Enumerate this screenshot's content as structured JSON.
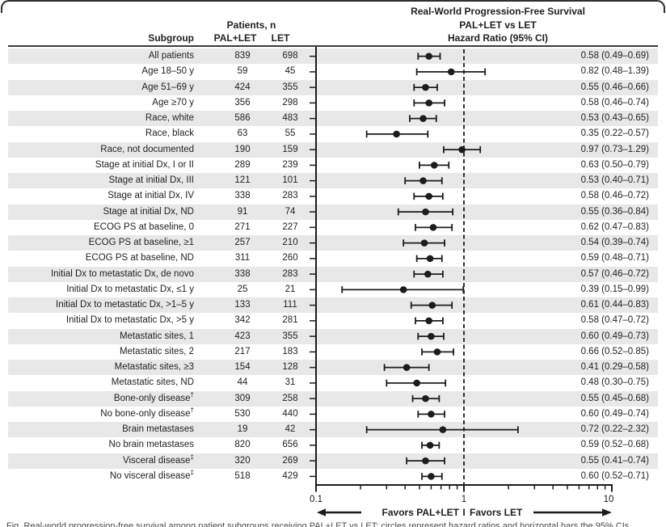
{
  "figure": {
    "title_lines": [
      "Real-World Progression-Free Survival",
      "PAL+LET vs LET",
      "Hazard Ratio (95% CI)"
    ],
    "col_headers": {
      "patients_n": "Patients, n",
      "subgroup": "Subgroup",
      "arm1": "PAL+LET",
      "arm2": "LET"
    },
    "favors": {
      "left": "Favors PAL+LET",
      "divider": "I",
      "right": "Favors LET"
    },
    "caption_partial": "Fig. Real-world progression-free survival among patient subgroups receiving PAL+LET vs LET; circles represent hazard ratios and horizontal bars the 95% CIs",
    "colors": {
      "band": "#e8e8e8",
      "ink": "#1c1c1c",
      "rule": "#3a3a3a"
    }
  },
  "chart_data": {
    "type": "scatter",
    "variant": "forest-plot",
    "title": "Real-World Progression-Free Survival PAL+LET vs LET Hazard Ratio (95% CI)",
    "x_axis": {
      "scale": "log",
      "min": 0.1,
      "max": 10,
      "tick_labels": [
        "0.1",
        "1",
        "10"
      ],
      "minor_ticks": [
        0.2,
        0.3,
        0.4,
        0.5,
        0.6,
        0.7,
        0.8,
        0.9,
        2,
        3,
        4,
        5,
        6,
        7,
        8,
        9
      ],
      "reference_line": 1
    },
    "legend": "none",
    "grid": false,
    "rows": [
      {
        "label": "All patients",
        "sup": "",
        "n_pal": "839",
        "n_let": "698",
        "hr": 0.58,
        "lo": 0.49,
        "hi": 0.69
      },
      {
        "label": "Age 18–50 y",
        "sup": "",
        "n_pal": "59",
        "n_let": "45",
        "hr": 0.82,
        "lo": 0.48,
        "hi": 1.39
      },
      {
        "label": "Age 51–69 y",
        "sup": "",
        "n_pal": "424",
        "n_let": "355",
        "hr": 0.55,
        "lo": 0.46,
        "hi": 0.66
      },
      {
        "label": "Age ≥70 y",
        "sup": "",
        "n_pal": "356",
        "n_let": "298",
        "hr": 0.58,
        "lo": 0.46,
        "hi": 0.74
      },
      {
        "label": "Race, white",
        "sup": "",
        "n_pal": "586",
        "n_let": "483",
        "hr": 0.53,
        "lo": 0.43,
        "hi": 0.65
      },
      {
        "label": "Race, black",
        "sup": "",
        "n_pal": "63",
        "n_let": "55",
        "hr": 0.35,
        "lo": 0.22,
        "hi": 0.57
      },
      {
        "label": "Race, not documented",
        "sup": "",
        "n_pal": "190",
        "n_let": "159",
        "hr": 0.97,
        "lo": 0.73,
        "hi": 1.29
      },
      {
        "label": "Stage at initial Dx, I or II",
        "sup": "",
        "n_pal": "289",
        "n_let": "239",
        "hr": 0.63,
        "lo": 0.5,
        "hi": 0.79
      },
      {
        "label": "Stage at initial Dx, III",
        "sup": "",
        "n_pal": "121",
        "n_let": "101",
        "hr": 0.53,
        "lo": 0.4,
        "hi": 0.71
      },
      {
        "label": "Stage at initial Dx, IV",
        "sup": "",
        "n_pal": "338",
        "n_let": "283",
        "hr": 0.58,
        "lo": 0.46,
        "hi": 0.72
      },
      {
        "label": "Stage at initial Dx, ND",
        "sup": "",
        "n_pal": "91",
        "n_let": "74",
        "hr": 0.55,
        "lo": 0.36,
        "hi": 0.84
      },
      {
        "label": "ECOG PS at baseline, 0",
        "sup": "",
        "n_pal": "271",
        "n_let": "227",
        "hr": 0.62,
        "lo": 0.47,
        "hi": 0.83
      },
      {
        "label": "ECOG PS at baseline, ≥1",
        "sup": "",
        "n_pal": "257",
        "n_let": "210",
        "hr": 0.54,
        "lo": 0.39,
        "hi": 0.74
      },
      {
        "label": "ECOG PS at baseline, ND",
        "sup": "",
        "n_pal": "311",
        "n_let": "260",
        "hr": 0.59,
        "lo": 0.48,
        "hi": 0.71
      },
      {
        "label": "Initial Dx to metastatic Dx, de novo",
        "sup": "",
        "n_pal": "338",
        "n_let": "283",
        "hr": 0.57,
        "lo": 0.46,
        "hi": 0.72
      },
      {
        "label": "Initial Dx to metastatic Dx, ≤1 y",
        "sup": "",
        "n_pal": "25",
        "n_let": "21",
        "hr": 0.39,
        "lo": 0.15,
        "hi": 0.99
      },
      {
        "label": "Initial Dx to metastatic Dx, >1–5 y",
        "sup": "",
        "n_pal": "133",
        "n_let": "111",
        "hr": 0.61,
        "lo": 0.44,
        "hi": 0.83
      },
      {
        "label": "Initial Dx to metastatic Dx, >5 y",
        "sup": "",
        "n_pal": "342",
        "n_let": "281",
        "hr": 0.58,
        "lo": 0.47,
        "hi": 0.72
      },
      {
        "label": "Metastatic sites, 1",
        "sup": "",
        "n_pal": "423",
        "n_let": "355",
        "hr": 0.6,
        "lo": 0.49,
        "hi": 0.73
      },
      {
        "label": "Metastatic sites, 2",
        "sup": "",
        "n_pal": "217",
        "n_let": "183",
        "hr": 0.66,
        "lo": 0.52,
        "hi": 0.85
      },
      {
        "label": "Metastatic sites, ≥3",
        "sup": "",
        "n_pal": "154",
        "n_let": "128",
        "hr": 0.41,
        "lo": 0.29,
        "hi": 0.58
      },
      {
        "label": "Metastatic sites, ND",
        "sup": "",
        "n_pal": "44",
        "n_let": "31",
        "hr": 0.48,
        "lo": 0.3,
        "hi": 0.75
      },
      {
        "label": "Bone-only disease",
        "sup": "†",
        "n_pal": "309",
        "n_let": "258",
        "hr": 0.55,
        "lo": 0.45,
        "hi": 0.68
      },
      {
        "label": "No bone-only disease",
        "sup": "†",
        "n_pal": "530",
        "n_let": "440",
        "hr": 0.6,
        "lo": 0.49,
        "hi": 0.74
      },
      {
        "label": "Brain metastases",
        "sup": "",
        "n_pal": "19",
        "n_let": "42",
        "hr": 0.72,
        "lo": 0.22,
        "hi": 2.32
      },
      {
        "label": "No brain metastases",
        "sup": "",
        "n_pal": "820",
        "n_let": "656",
        "hr": 0.59,
        "lo": 0.52,
        "hi": 0.68
      },
      {
        "label": "Visceral disease",
        "sup": "‡",
        "n_pal": "320",
        "n_let": "269",
        "hr": 0.55,
        "lo": 0.41,
        "hi": 0.74
      },
      {
        "label": "No visceral disease",
        "sup": "‡",
        "n_pal": "518",
        "n_let": "429",
        "hr": 0.6,
        "lo": 0.52,
        "hi": 0.71
      }
    ]
  }
}
